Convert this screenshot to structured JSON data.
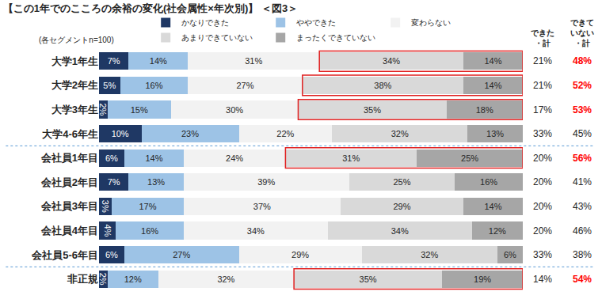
{
  "chart_data": {
    "type": "bar",
    "title": "【この1年でのこころの余裕の変化(社会属性×年次別)】 ＜図3＞",
    "subtitle": "(各セグメントn=100)",
    "orientation": "horizontal",
    "stacked": true,
    "data_labels": true,
    "tick_labels": "y",
    "legend": "top",
    "grid": false,
    "xlim": [
      0,
      100
    ],
    "categories": [
      "大学1年生",
      "大学2年生",
      "大学3年生",
      "大学4-6年生",
      "会社員1年目",
      "会社員2年目",
      "会社員3年目",
      "会社員4年目",
      "会社員5-6年目",
      "非正規"
    ],
    "series": [
      {
        "name": "かなりできた",
        "color": "#1f3864",
        "values": [
          7,
          5,
          2,
          10,
          6,
          7,
          3,
          4,
          6,
          2
        ],
        "value_labels": [
          "7%",
          "5%",
          "2%",
          "10%",
          "6%",
          "7%",
          "3%",
          "4%",
          "6%",
          "2%"
        ]
      },
      {
        "name": "ややできた",
        "color": "#9dc3e6",
        "values": [
          14,
          16,
          15,
          23,
          14,
          13,
          17,
          16,
          27,
          12
        ],
        "value_labels": [
          "14%",
          "16%",
          "15%",
          "23%",
          "14%",
          "13%",
          "17%",
          "16%",
          "27%",
          "12%"
        ]
      },
      {
        "name": "変わらない",
        "color": "#f2f2f2",
        "values": [
          31,
          27,
          30,
          22,
          24,
          39,
          37,
          34,
          29,
          32
        ],
        "value_labels": [
          "31%",
          "27%",
          "30%",
          "22%",
          "24%",
          "39%",
          "37%",
          "34%",
          "29%",
          "32%"
        ]
      },
      {
        "name": "あまりできていない",
        "color": "#d9d9d9",
        "values": [
          34,
          38,
          35,
          32,
          31,
          25,
          29,
          34,
          32,
          35
        ],
        "value_labels": [
          "34%",
          "38%",
          "35%",
          "32%",
          "31%",
          "25%",
          "29%",
          "34%",
          "32%",
          "35%"
        ]
      },
      {
        "name": "まったくできていない",
        "color": "#a6a6a6",
        "values": [
          14,
          14,
          18,
          13,
          25,
          16,
          14,
          12,
          6,
          19
        ],
        "value_labels": [
          "14%",
          "14%",
          "18%",
          "13%",
          "25%",
          "16%",
          "14%",
          "12%",
          "6%",
          "19%"
        ]
      }
    ],
    "totals": [
      {
        "name": "できた・計",
        "values": [
          21,
          21,
          17,
          33,
          20,
          20,
          20,
          20,
          33,
          14
        ],
        "value_labels": [
          "21%",
          "21%",
          "17%",
          "33%",
          "20%",
          "20%",
          "20%",
          "20%",
          "33%",
          "14%"
        ],
        "colors": [
          "#262626",
          "#262626",
          "#262626",
          "#262626",
          "#262626",
          "#262626",
          "#262626",
          "#262626",
          "#262626",
          "#262626"
        ]
      },
      {
        "name": "できていない・計",
        "values": [
          48,
          52,
          53,
          45,
          56,
          41,
          43,
          46,
          38,
          54
        ],
        "value_labels": [
          "48%",
          "52%",
          "53%",
          "45%",
          "56%",
          "41%",
          "43%",
          "46%",
          "38%",
          "54%"
        ],
        "colors": [
          "#ff0000",
          "#ff0000",
          "#ff0000",
          "#262626",
          "#ff0000",
          "#262626",
          "#262626",
          "#262626",
          "#262626",
          "#ff0000"
        ]
      }
    ]
  }
}
